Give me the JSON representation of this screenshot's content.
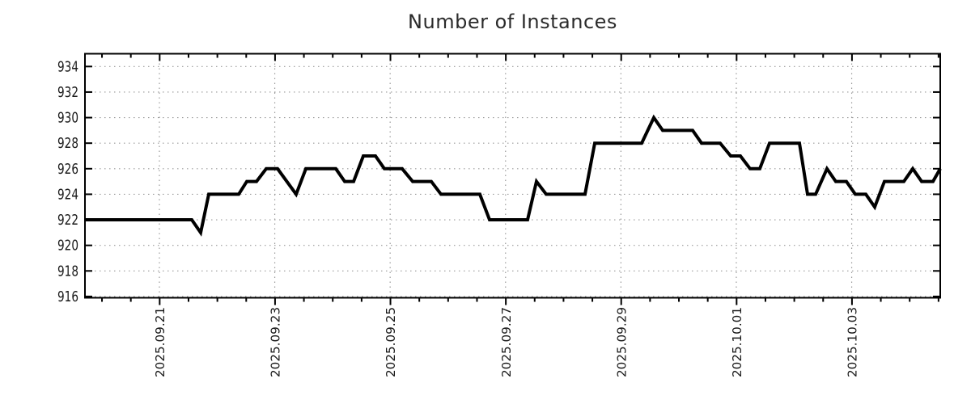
{
  "title": "Number of Instances",
  "colors": {
    "background": "#ffffff",
    "line": "#000000",
    "grid": "#9a9a9a",
    "axis": "#000000",
    "text": "#1a1a1a",
    "title_text": "#2b2b2b"
  },
  "chart_data": {
    "type": "line",
    "title": "Number of Instances",
    "xlabel": "",
    "ylabel": "",
    "grid": true,
    "legend": "none",
    "x_axis": {
      "window_days": 14.825,
      "major_ticks": [
        {
          "t": 1.29,
          "label": "2025.09.21"
        },
        {
          "t": 3.29,
          "label": "2025.09.23"
        },
        {
          "t": 5.29,
          "label": "2025.09.25"
        },
        {
          "t": 7.29,
          "label": "2025.09.27"
        },
        {
          "t": 9.29,
          "label": "2025.09.29"
        },
        {
          "t": 11.29,
          "label": "2025.10.01"
        },
        {
          "t": 13.29,
          "label": "2025.10.03"
        }
      ],
      "minor_tick_start": 0.295,
      "minor_tick_step": 0.5
    },
    "y_axis": {
      "ticks": [
        916,
        918,
        920,
        922,
        924,
        926,
        928,
        930,
        932,
        934
      ],
      "range": [
        915.9,
        935.0
      ]
    },
    "series": [
      {
        "name": "Number of Instances",
        "color": "#000000",
        "points": [
          [
            0.0,
            922
          ],
          [
            1.851,
            922
          ],
          [
            2.006,
            921
          ],
          [
            2.146,
            924
          ],
          [
            2.665,
            924
          ],
          [
            2.805,
            925
          ],
          [
            2.973,
            925
          ],
          [
            3.142,
            926
          ],
          [
            3.338,
            926
          ],
          [
            3.661,
            924
          ],
          [
            3.829,
            926
          ],
          [
            4.348,
            926
          ],
          [
            4.502,
            925
          ],
          [
            4.657,
            925
          ],
          [
            4.825,
            927
          ],
          [
            5.035,
            927
          ],
          [
            5.189,
            926
          ],
          [
            5.498,
            926
          ],
          [
            5.68,
            925
          ],
          [
            6.003,
            925
          ],
          [
            6.171,
            924
          ],
          [
            6.844,
            924
          ],
          [
            7.013,
            922
          ],
          [
            7.672,
            922
          ],
          [
            7.826,
            925
          ],
          [
            7.994,
            924
          ],
          [
            8.668,
            924
          ],
          [
            8.836,
            928
          ],
          [
            9.649,
            928
          ],
          [
            9.86,
            930
          ],
          [
            10.014,
            929
          ],
          [
            10.533,
            929
          ],
          [
            10.687,
            928
          ],
          [
            11.01,
            928
          ],
          [
            11.192,
            927
          ],
          [
            11.361,
            927
          ],
          [
            11.529,
            926
          ],
          [
            11.697,
            926
          ],
          [
            11.866,
            928
          ],
          [
            12.384,
            928
          ],
          [
            12.525,
            924
          ],
          [
            12.665,
            924
          ],
          [
            12.861,
            926
          ],
          [
            13.015,
            925
          ],
          [
            13.198,
            925
          ],
          [
            13.352,
            924
          ],
          [
            13.534,
            924
          ],
          [
            13.689,
            923
          ],
          [
            13.857,
            925
          ],
          [
            14.194,
            925
          ],
          [
            14.348,
            926
          ],
          [
            14.502,
            925
          ],
          [
            14.699,
            925
          ],
          [
            14.825,
            926
          ]
        ]
      }
    ]
  }
}
